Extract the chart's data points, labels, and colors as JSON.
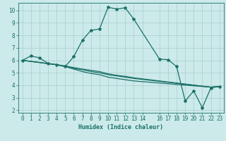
{
  "title": "",
  "xlabel": "Humidex (Indice chaleur)",
  "background_color": "#cceaea",
  "grid_color": "#aacccc",
  "line_color": "#1a7068",
  "xlim": [
    -0.5,
    23.5
  ],
  "ylim": [
    1.8,
    10.6
  ],
  "yticks": [
    2,
    3,
    4,
    5,
    6,
    7,
    8,
    9,
    10
  ],
  "xticks": [
    0,
    1,
    2,
    3,
    4,
    5,
    6,
    7,
    8,
    9,
    10,
    11,
    12,
    13,
    14,
    16,
    17,
    18,
    19,
    20,
    21,
    22,
    23
  ],
  "line1_x": [
    0,
    1,
    2,
    3,
    4,
    5,
    6,
    7,
    8,
    9,
    10,
    11,
    12,
    13,
    16,
    17,
    18,
    19,
    20,
    21,
    22,
    23
  ],
  "line1_y": [
    6.0,
    6.35,
    6.2,
    5.75,
    5.65,
    5.5,
    6.3,
    7.6,
    8.4,
    8.5,
    10.25,
    10.1,
    10.2,
    9.3,
    6.1,
    6.05,
    5.5,
    2.75,
    3.55,
    2.2,
    3.8,
    3.9
  ],
  "line2_x": [
    0,
    4,
    5,
    6,
    7,
    8,
    9,
    10,
    11,
    12,
    13,
    22,
    23
  ],
  "line2_y": [
    6.0,
    5.65,
    5.5,
    5.35,
    5.25,
    5.1,
    5.0,
    4.85,
    4.75,
    4.65,
    4.55,
    3.85,
    3.9
  ],
  "line3_x": [
    0,
    4,
    5,
    6,
    7,
    8,
    9,
    10,
    11,
    12,
    13,
    22,
    23
  ],
  "line3_y": [
    6.0,
    5.65,
    5.5,
    5.3,
    5.1,
    4.95,
    4.85,
    4.65,
    4.55,
    4.45,
    4.35,
    3.85,
    3.9
  ],
  "line4_x": [
    0,
    4,
    5,
    6,
    7,
    8,
    9,
    10,
    11,
    12,
    13,
    22,
    23
  ],
  "line4_y": [
    6.0,
    5.65,
    5.55,
    5.42,
    5.3,
    5.2,
    5.1,
    4.92,
    4.8,
    4.72,
    4.6,
    3.85,
    3.9
  ],
  "marker_size": 3.0,
  "line_width": 0.9,
  "tick_fontsize": 5.5,
  "xlabel_fontsize": 6.0
}
